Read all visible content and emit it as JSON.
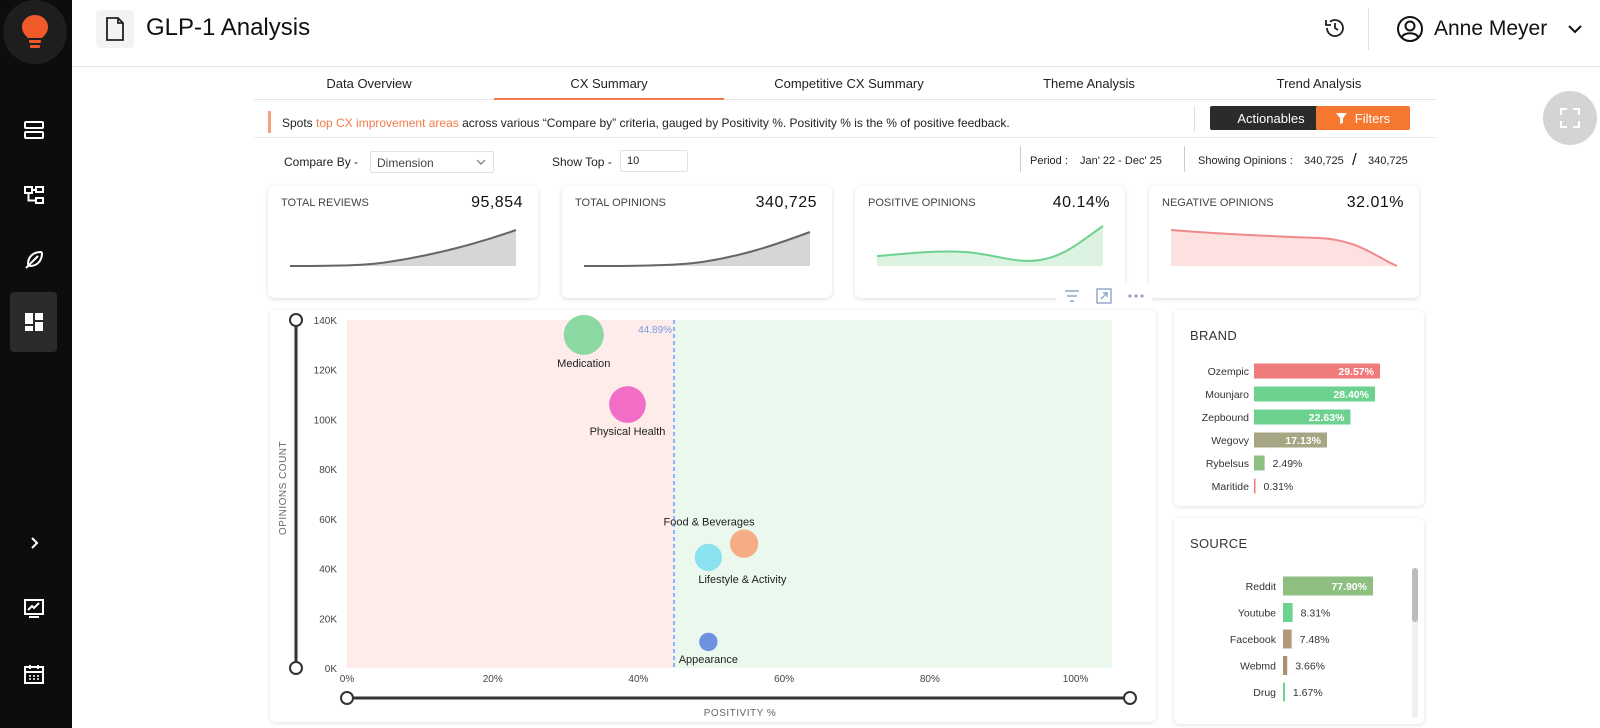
{
  "app": {
    "title": "GLP-1 Analysis",
    "user_name": "Anne Meyer"
  },
  "tabs": [
    "Data Overview",
    "CX Summary",
    "Competitive CX Summary",
    "Theme Analysis",
    "Trend Analysis"
  ],
  "info": {
    "text_pre": "Spots ",
    "text_highlight": "top CX improvement areas",
    "text_post": " across various “Compare by” criteria, gauged by Positivity %. Positivity % is the % of positive feedback.",
    "actionables_label": "Actionables",
    "filters_label": "Filters"
  },
  "controls": {
    "compare_by_label": "Compare By -",
    "compare_by_value": "Dimension",
    "show_top_label": "Show Top -",
    "show_top_value": "10",
    "period_label": "Period :",
    "period_value": "Jan' 22 - Dec' 25",
    "showing_label": "Showing Opinions :",
    "showing_value": "340,725",
    "showing_sep": "/",
    "showing_total": "340,725"
  },
  "kpis": [
    {
      "label": "TOTAL REVIEWS",
      "value": "95,854"
    },
    {
      "label": "TOTAL OPINIONS",
      "value": "340,725"
    },
    {
      "label": "POSITIVE OPINIONS",
      "value": "40.14%"
    },
    {
      "label": "NEGATIVE OPINIONS",
      "value": "32.01%"
    }
  ],
  "colors": {
    "accent": "#f47a4a",
    "sidebar": "#0d0d0d",
    "negative_zone": "#fdecea",
    "positive_zone": "#eaf8ee",
    "threshold": "#8ab4f8"
  },
  "chart_data": {
    "type": "scatter",
    "title": "",
    "xlabel": "POSITIVITY %",
    "ylabel": "OPINIONS COUNT",
    "xlim": [
      0,
      105
    ],
    "ylim": [
      0,
      140000
    ],
    "x_ticks": [
      "0%",
      "20%",
      "40%",
      "60%",
      "80%",
      "100%"
    ],
    "x_tick_values": [
      0,
      20,
      40,
      60,
      80,
      100
    ],
    "y_ticks": [
      "0K",
      "20K",
      "40K",
      "60K",
      "80K",
      "100K",
      "120K",
      "140K"
    ],
    "y_tick_values": [
      0,
      20000,
      40000,
      60000,
      80000,
      100000,
      120000,
      140000
    ],
    "threshold": {
      "value": 44.89,
      "label": "44.89%"
    },
    "points": [
      {
        "label": "Medication",
        "x": 32.5,
        "y": 134000,
        "size": 134000,
        "color": "#7ed69a"
      },
      {
        "label": "Physical Health",
        "x": 38.5,
        "y": 106000,
        "size": 106000,
        "color": "#f05fc2"
      },
      {
        "label": "Food & Beverages",
        "x": 54.5,
        "y": 50000,
        "size": 50000,
        "color": "#f7a47a"
      },
      {
        "label": "Lifestyle & Activity",
        "x": 49.6,
        "y": 44500,
        "size": 44500,
        "color": "#7fdff0"
      },
      {
        "label": "Appearance",
        "x": 49.6,
        "y": 10500,
        "size": 10500,
        "color": "#5f86e0"
      }
    ]
  },
  "brand": {
    "title": "BRAND",
    "items": [
      {
        "label": "Ozempic",
        "value": 29.57,
        "display": "29.57%",
        "color": "#f07b7b"
      },
      {
        "label": "Mounjaro",
        "value": 28.4,
        "display": "28.40%",
        "color": "#6dd18f"
      },
      {
        "label": "Zepbound",
        "value": 22.63,
        "display": "22.63%",
        "color": "#6dd18f"
      },
      {
        "label": "Wegovy",
        "value": 17.13,
        "display": "17.13%",
        "color": "#a6a684"
      },
      {
        "label": "Rybelsus",
        "value": 2.49,
        "display": "2.49%",
        "color": "#8fbf80"
      },
      {
        "label": "Maritide",
        "value": 0.31,
        "display": "0.31%",
        "color": "#f07b7b"
      }
    ]
  },
  "source": {
    "title": "SOURCE",
    "items": [
      {
        "label": "Reddit",
        "value": 77.9,
        "display": "77.90%",
        "color": "#8fbf80"
      },
      {
        "label": "Youtube",
        "value": 8.31,
        "display": "8.31%",
        "color": "#6dd18f"
      },
      {
        "label": "Facebook",
        "value": 7.48,
        "display": "7.48%",
        "color": "#b49a7d"
      },
      {
        "label": "Webmd",
        "value": 3.66,
        "display": "3.66%",
        "color": "#a89072"
      },
      {
        "label": "Drug",
        "value": 1.67,
        "display": "1.67%",
        "color": "#6dd18f"
      }
    ]
  }
}
